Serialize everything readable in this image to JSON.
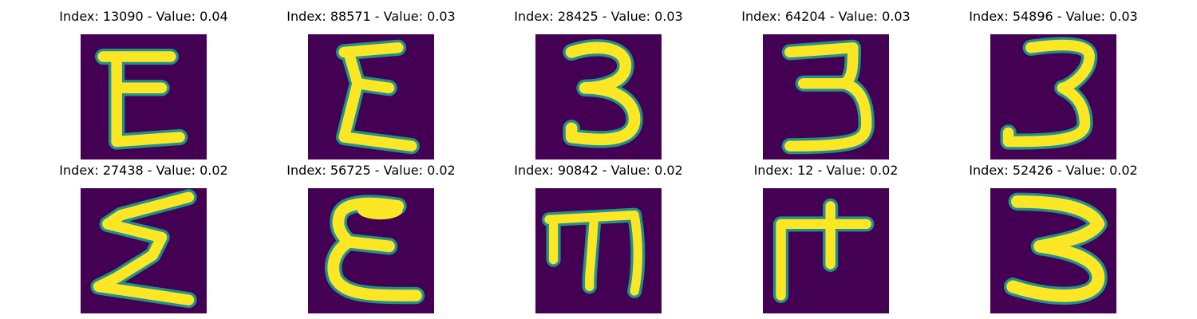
{
  "colors": {
    "background": "#440154",
    "stroke": "#fde725",
    "edge": "#21918c"
  },
  "panels": [
    {
      "title": "Index: 13090 - Value: 0.04",
      "glyph": "E-shape"
    },
    {
      "title": "Index: 88571 - Value: 0.03",
      "glyph": "sigma-shape"
    },
    {
      "title": "Index: 28425 - Value: 0.03",
      "glyph": "three"
    },
    {
      "title": "Index: 64204 - Value: 0.03",
      "glyph": "three"
    },
    {
      "title": "Index: 54896 - Value: 0.03",
      "glyph": "three"
    },
    {
      "title": "Index: 27438 - Value: 0.02",
      "glyph": "sigma-shape"
    },
    {
      "title": "Index: 56725 - Value: 0.02",
      "glyph": "E-shape"
    },
    {
      "title": "Index: 90842 - Value: 0.02",
      "glyph": "m-shape"
    },
    {
      "title": "Index: 12 - Value: 0.02",
      "glyph": "F-cross-shape"
    },
    {
      "title": "Index: 52426 - Value: 0.02",
      "glyph": "three"
    }
  ]
}
